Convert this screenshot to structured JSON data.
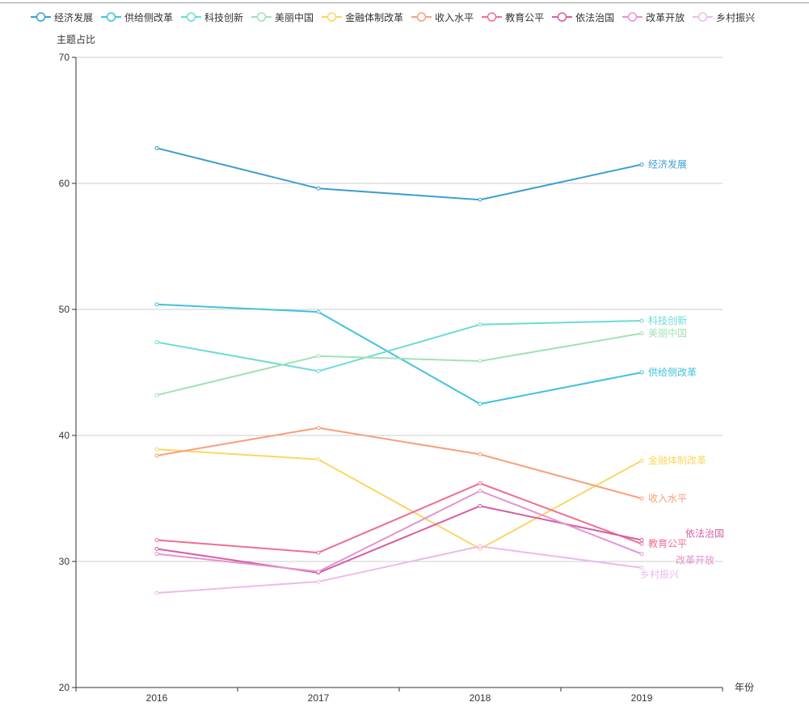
{
  "chart_data": {
    "type": "line",
    "title": "",
    "xlabel": "年份",
    "ylabel": "主题占比",
    "ylim": [
      20,
      70
    ],
    "yticks": [
      20,
      30,
      40,
      50,
      60,
      70
    ],
    "categories": [
      "2016",
      "2017",
      "2018",
      "2019"
    ],
    "grid": true,
    "legend_position": "top",
    "series": [
      {
        "name": "经济发展",
        "color": "#3c9fd1",
        "values": [
          62.8,
          59.6,
          58.7,
          61.5
        ]
      },
      {
        "name": "供给侧改革",
        "color": "#3ec3de",
        "values": [
          50.4,
          49.8,
          42.5,
          45.0
        ]
      },
      {
        "name": "科技创新",
        "color": "#6bdbd6",
        "values": [
          47.4,
          45.1,
          48.8,
          49.1
        ]
      },
      {
        "name": "美丽中国",
        "color": "#9fe2b4",
        "values": [
          43.2,
          46.3,
          45.9,
          48.1
        ]
      },
      {
        "name": "金融体制改革",
        "color": "#fbd663",
        "values": [
          38.9,
          38.1,
          31.0,
          38.0
        ]
      },
      {
        "name": "收入水平",
        "color": "#f7a07c",
        "values": [
          38.4,
          40.6,
          38.5,
          35.0
        ]
      },
      {
        "name": "教育公平",
        "color": "#ee6f8f",
        "values": [
          31.7,
          30.7,
          36.2,
          31.4
        ]
      },
      {
        "name": "依法治国",
        "color": "#d55fa5",
        "values": [
          31.0,
          29.1,
          34.4,
          31.7
        ]
      },
      {
        "name": "改革开放",
        "color": "#e394d2",
        "values": [
          30.6,
          29.2,
          35.6,
          30.6
        ]
      },
      {
        "name": "乡村振兴",
        "color": "#ecbaea",
        "values": [
          27.5,
          28.4,
          31.2,
          29.5
        ]
      }
    ]
  }
}
